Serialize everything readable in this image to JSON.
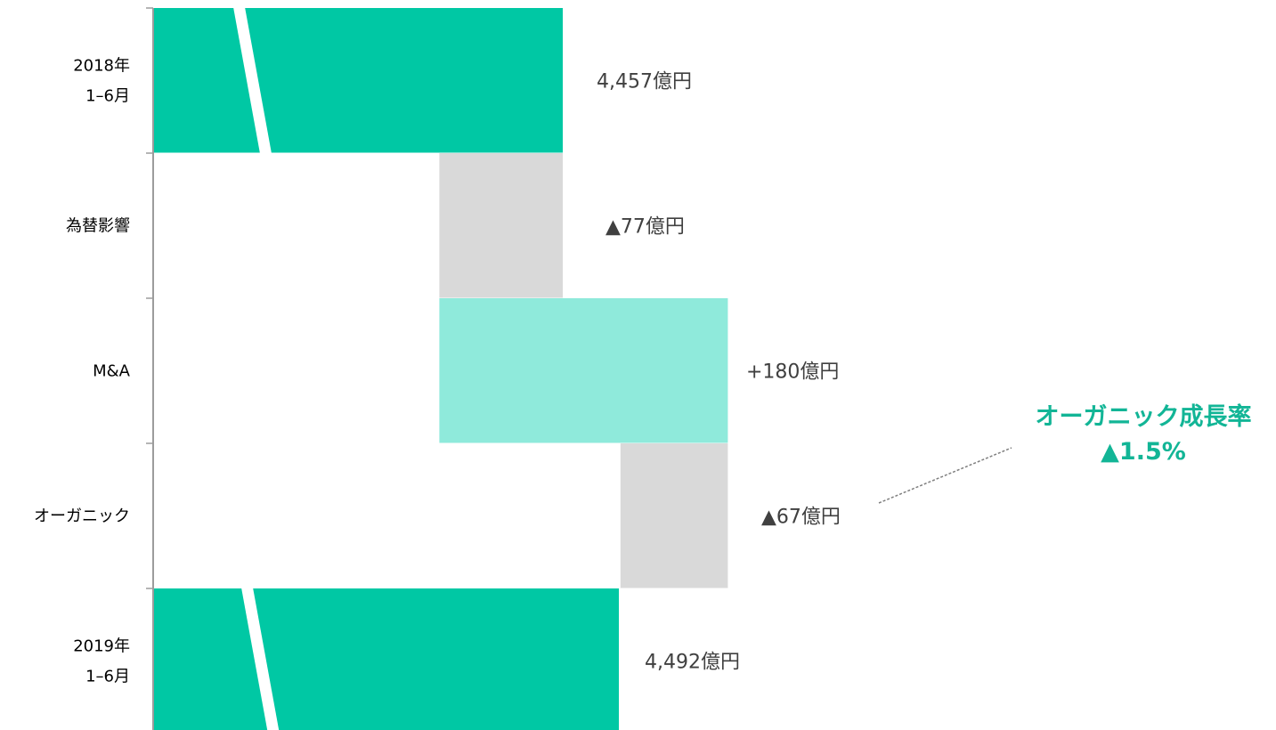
{
  "chart_data": {
    "type": "bar",
    "orientation": "horizontal-waterfall",
    "categories": [
      [
        "2018年",
        "1–6月"
      ],
      [
        "為替影響"
      ],
      [
        "M&A"
      ],
      [
        "オーガニック"
      ],
      [
        "2019年",
        "1–6月"
      ]
    ],
    "values": [
      4457,
      -77,
      180,
      -67,
      4492
    ],
    "kinds": [
      "total",
      "delta",
      "delta",
      "delta",
      "total"
    ],
    "data_labels": [
      "4,457億円",
      "▲77億円",
      "+180億円",
      "▲67億円",
      "4,492億円"
    ],
    "axis_break": true,
    "grid": false,
    "annotation": {
      "lines": [
        "オーガニック成長率",
        "▲1.5%"
      ],
      "target_category": "オーガニック"
    },
    "colors": {
      "total": "#00c8a4",
      "increase": "#8feadb",
      "decrease": "#d9d9d9",
      "axis": "#9c9c9c",
      "label": "#404040",
      "callout": "#12b596"
    }
  }
}
